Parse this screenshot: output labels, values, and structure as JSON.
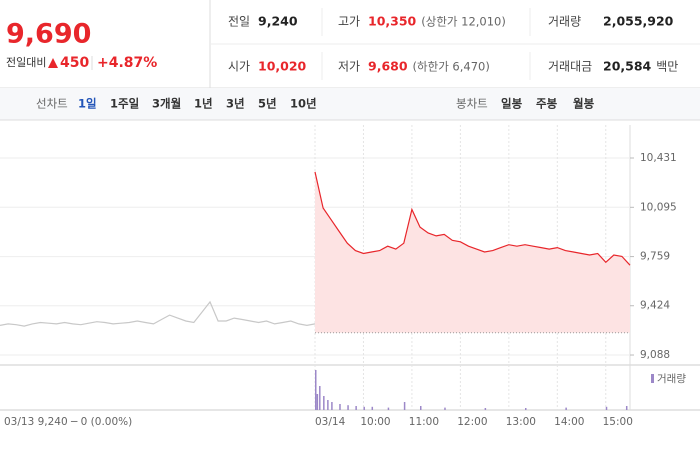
{
  "header": {
    "price": "9,690",
    "change_label": "전일대비",
    "change": "450",
    "change_pct": "+4.87%",
    "stats": [
      {
        "label": "전일",
        "value": "9,240"
      },
      {
        "label": "고가",
        "value": "10,350",
        "note": "(상한가 12,010)"
      },
      {
        "label": "거래량",
        "value": "2,055,920"
      },
      {
        "label": "시가",
        "value": "10,020"
      },
      {
        "label": "저가",
        "value": "9,680",
        "note": "(하한가 6,470)"
      },
      {
        "label": "거래대금",
        "value": "20,584",
        "unit": "백만"
      }
    ]
  },
  "tabs": {
    "left_label": "선차트",
    "left": [
      "1일",
      "1주일",
      "3개월",
      "1년",
      "3년",
      "5년",
      "10년"
    ],
    "right_label": "봉차트",
    "right": [
      "일봉",
      "주봉",
      "월봉"
    ]
  },
  "chart_data": {
    "type": "line",
    "note": "03/13  9,240 ─ 0 (0.00%)",
    "xlim": [
      0,
      780
    ],
    "ylim": [
      9020,
      10656
    ],
    "xticks": [
      {
        "value": 390,
        "label": "03/14"
      },
      {
        "value": 450,
        "label": "10:00"
      },
      {
        "value": 510,
        "label": "11:00"
      },
      {
        "value": 570,
        "label": "12:00"
      },
      {
        "value": 630,
        "label": "13:00"
      },
      {
        "value": 690,
        "label": "14:00"
      },
      {
        "value": 750,
        "label": "15:00"
      }
    ],
    "yticks": [
      {
        "value": 9088,
        "label": "9,088"
      },
      {
        "value": 9424,
        "label": "9,424"
      },
      {
        "value": 9759,
        "label": "9,759"
      },
      {
        "value": 10095,
        "label": "10,095"
      },
      {
        "value": 10431,
        "label": "10,431"
      }
    ],
    "ref_line": 9240,
    "series": [
      {
        "color": "#c8c8c8",
        "x": [
          0,
          10,
          20,
          30,
          40,
          50,
          60,
          70,
          80,
          90,
          100,
          110,
          120,
          130,
          140,
          150,
          160,
          170,
          180,
          190,
          200,
          210,
          220,
          230,
          240,
          250,
          260,
          270,
          280,
          290,
          300,
          310,
          320,
          330,
          340,
          350,
          360,
          370,
          380,
          390
        ],
        "values": [
          9290,
          9300,
          9295,
          9285,
          9300,
          9310,
          9305,
          9300,
          9310,
          9300,
          9295,
          9305,
          9315,
          9310,
          9300,
          9305,
          9310,
          9320,
          9310,
          9300,
          9330,
          9360,
          9340,
          9320,
          9310,
          9380,
          9450,
          9320,
          9320,
          9340,
          9330,
          9320,
          9310,
          9320,
          9300,
          9310,
          9320,
          9300,
          9290,
          9300
        ]
      },
      {
        "color": "#e8262b",
        "fill": "#fde3e3",
        "x": [
          390,
          400,
          410,
          420,
          430,
          440,
          450,
          460,
          470,
          480,
          490,
          500,
          510,
          520,
          530,
          540,
          550,
          560,
          570,
          580,
          590,
          600,
          610,
          620,
          630,
          640,
          650,
          660,
          670,
          680,
          690,
          700,
          710,
          720,
          730,
          740,
          750,
          760,
          770,
          780
        ],
        "values": [
          10336,
          10090,
          10010,
          9930,
          9850,
          9800,
          9780,
          9790,
          9800,
          9830,
          9810,
          9850,
          10080,
          9960,
          9920,
          9900,
          9910,
          9870,
          9860,
          9830,
          9810,
          9790,
          9800,
          9820,
          9840,
          9830,
          9840,
          9830,
          9820,
          9810,
          9820,
          9800,
          9790,
          9780,
          9770,
          9780,
          9720,
          9770,
          9760,
          9700
        ]
      }
    ],
    "volume": {
      "name": "거래량",
      "color": "#9c88c8",
      "vlim": [
        0,
        100
      ],
      "x": [
        390,
        392,
        395,
        400,
        405,
        410,
        420,
        430,
        440,
        450,
        460,
        480,
        500,
        520,
        550,
        600,
        650,
        700,
        750,
        775
      ],
      "values": [
        100,
        40,
        60,
        35,
        25,
        20,
        15,
        12,
        10,
        8,
        8,
        6,
        20,
        10,
        6,
        5,
        5,
        6,
        8,
        10
      ]
    }
  }
}
